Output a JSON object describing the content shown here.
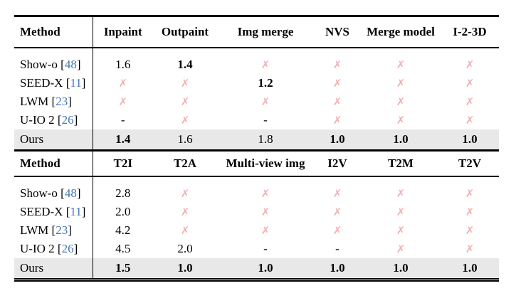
{
  "colors": {
    "cross_pink": "#f2b1b3",
    "citation_blue": "#4478b8",
    "highlight_row_bg": "#e8e8e8",
    "rule_black": "#000000"
  },
  "glyphs": {
    "cross": "✗",
    "dash": "-"
  },
  "tables": [
    {
      "method_header": "Method",
      "columns": [
        "Inpaint",
        "Outpaint",
        "Img merge",
        "NVS",
        "Merge model",
        "I-2-3D"
      ],
      "rows": [
        {
          "method": "Show-o",
          "cite": "48",
          "cells": [
            {
              "v": "1.6"
            },
            {
              "v": "1.4",
              "bold": true
            },
            {
              "cross": true
            },
            {
              "cross": true
            },
            {
              "cross": true
            },
            {
              "cross": true
            }
          ]
        },
        {
          "method": "SEED-X",
          "cite": "11",
          "cells": [
            {
              "cross": true
            },
            {
              "cross": true
            },
            {
              "v": "1.2",
              "bold": true
            },
            {
              "cross": true
            },
            {
              "cross": true
            },
            {
              "cross": true
            }
          ]
        },
        {
          "method": "LWM",
          "cite": "23",
          "cells": [
            {
              "cross": true
            },
            {
              "cross": true
            },
            {
              "cross": true
            },
            {
              "cross": true
            },
            {
              "cross": true
            },
            {
              "cross": true
            }
          ]
        },
        {
          "method": "U-IO 2",
          "cite": "26",
          "cells": [
            {
              "v": "-"
            },
            {
              "cross": true
            },
            {
              "v": "-"
            },
            {
              "cross": true
            },
            {
              "cross": true
            },
            {
              "cross": true
            }
          ]
        },
        {
          "method": "Ours",
          "highlight": true,
          "cells": [
            {
              "v": "1.4",
              "bold": true
            },
            {
              "v": "1.6"
            },
            {
              "v": "1.8"
            },
            {
              "v": "1.0",
              "bold": true
            },
            {
              "v": "1.0",
              "bold": true
            },
            {
              "v": "1.0",
              "bold": true
            }
          ]
        }
      ]
    },
    {
      "method_header": "Method",
      "columns": [
        "T2I",
        "T2A",
        "Multi-view img",
        "I2V",
        "T2M",
        "T2V"
      ],
      "rows": [
        {
          "method": "Show-o",
          "cite": "48",
          "cells": [
            {
              "v": "2.8"
            },
            {
              "cross": true
            },
            {
              "cross": true
            },
            {
              "cross": true
            },
            {
              "cross": true
            },
            {
              "cross": true
            }
          ]
        },
        {
          "method": "SEED-X",
          "cite": "11",
          "cells": [
            {
              "v": "2.0"
            },
            {
              "cross": true
            },
            {
              "cross": true
            },
            {
              "cross": true
            },
            {
              "cross": true
            },
            {
              "cross": true
            }
          ]
        },
        {
          "method": "LWM",
          "cite": "23",
          "cells": [
            {
              "v": "4.2"
            },
            {
              "cross": true
            },
            {
              "cross": true
            },
            {
              "cross": true
            },
            {
              "cross": true
            },
            {
              "cross": true
            }
          ]
        },
        {
          "method": "U-IO 2",
          "cite": "26",
          "cells": [
            {
              "v": "4.5"
            },
            {
              "v": "2.0"
            },
            {
              "v": "-"
            },
            {
              "v": "-"
            },
            {
              "cross": true
            },
            {
              "cross": true
            }
          ]
        },
        {
          "method": "Ours",
          "highlight": true,
          "cells": [
            {
              "v": "1.5",
              "bold": true
            },
            {
              "v": "1.0",
              "bold": true
            },
            {
              "v": "1.0",
              "bold": true
            },
            {
              "v": "1.0",
              "bold": true
            },
            {
              "v": "1.0",
              "bold": true
            },
            {
              "v": "1.0",
              "bold": true
            }
          ]
        }
      ]
    }
  ]
}
